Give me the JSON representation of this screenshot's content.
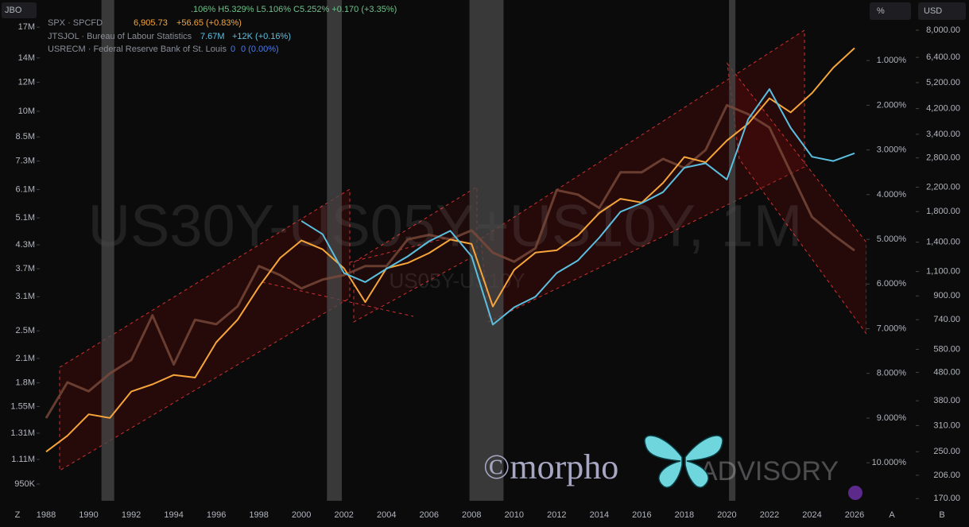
{
  "toolbar": {
    "left_tag": "JBO",
    "pct_tag": "%",
    "usd_tag": "USD",
    "bottom_left": "Z",
    "bottom_a": "A",
    "bottom_b": "B"
  },
  "chart_data": {
    "type": "line",
    "ohlc_line": ".106%  H5.329%  L5.106%  C5.252%  +0.170 (+3.35%)",
    "watermark": "US30Y-US05Y+US10Y, 1M",
    "watermark_sub": "US05Y-US10Y",
    "logo_text": "©morpho",
    "logo_tail": "ADVISORY",
    "x": [
      1988,
      1989,
      1990,
      1991,
      1992,
      1993,
      1994,
      1995,
      1996,
      1997,
      1998,
      1999,
      2000,
      2001,
      2002,
      2003,
      2004,
      2005,
      2006,
      2007,
      2008,
      2009,
      2010,
      2011,
      2012,
      2013,
      2014,
      2015,
      2016,
      2017,
      2018,
      2019,
      2020,
      2021,
      2022,
      2023,
      2024,
      2025,
      2026
    ],
    "xlim": [
      1987.7,
      2026.56
    ],
    "xticks": [
      1988,
      1990,
      1992,
      1994,
      1996,
      1998,
      2000,
      2002,
      2004,
      2006,
      2008,
      2010,
      2012,
      2014,
      2016,
      2018,
      2020,
      2022,
      2024,
      2026
    ],
    "ylim": [
      855000,
      17800000
    ],
    "log_y": true,
    "yticks": [
      {
        "value": 17000000,
        "label": "17M"
      },
      {
        "value": 14000000,
        "label": "14M"
      },
      {
        "value": 12000000,
        "label": "12M"
      },
      {
        "value": 10000000,
        "label": "10M"
      },
      {
        "value": 8500000,
        "label": "8.5M"
      },
      {
        "value": 7300000,
        "label": "7.3M"
      },
      {
        "value": 6100000,
        "label": "6.1M"
      },
      {
        "value": 5100000,
        "label": "5.1M"
      },
      {
        "value": 4300000,
        "label": "4.3M"
      },
      {
        "value": 3700000,
        "label": "3.7M"
      },
      {
        "value": 3100000,
        "label": "3.1M"
      },
      {
        "value": 2500000,
        "label": "2.5M"
      },
      {
        "value": 2100000,
        "label": "2.1M"
      },
      {
        "value": 1800000,
        "label": "1.8M"
      },
      {
        "value": 1550000,
        "label": "1.55M"
      },
      {
        "value": 1310000,
        "label": "1.31M"
      },
      {
        "value": 1110000,
        "label": "1.11M"
      },
      {
        "value": 950000,
        "label": "950K"
      }
    ],
    "y3lim": [
      0.09,
      10.85
    ],
    "y3_inverted": true,
    "y3ticks": [
      {
        "value": 1,
        "label": "1.000%"
      },
      {
        "value": 2,
        "label": "2.000%"
      },
      {
        "value": 3,
        "label": "3.000%"
      },
      {
        "value": 4,
        "label": "4.000%"
      },
      {
        "value": 5,
        "label": "5.000%"
      },
      {
        "value": 6,
        "label": "6.000%"
      },
      {
        "value": 7,
        "label": "7.000%"
      },
      {
        "value": 8,
        "label": "8.000%"
      },
      {
        "value": 9,
        "label": "9.000%"
      },
      {
        "value": 10,
        "label": "10.000%"
      }
    ],
    "y2lim": [
      167,
      8710
    ],
    "log_y2": true,
    "y2ticks": [
      {
        "value": 8000,
        "label": "8,000.00"
      },
      {
        "value": 6400,
        "label": "6,400.00"
      },
      {
        "value": 5200,
        "label": "5,200.00"
      },
      {
        "value": 4200,
        "label": "4,200.00"
      },
      {
        "value": 3400,
        "label": "3,400.00"
      },
      {
        "value": 2800,
        "label": "2,800.00"
      },
      {
        "value": 2200,
        "label": "2,200.00"
      },
      {
        "value": 1800,
        "label": "1,800.00"
      },
      {
        "value": 1400,
        "label": "1,400.00"
      },
      {
        "value": 1100,
        "label": "1,100.00"
      },
      {
        "value": 900,
        "label": "900.00"
      },
      {
        "value": 740,
        "label": "740.00"
      },
      {
        "value": 580,
        "label": "580.00"
      },
      {
        "value": 480,
        "label": "480.00"
      },
      {
        "value": 380,
        "label": "380.00"
      },
      {
        "value": 310,
        "label": "310.00"
      },
      {
        "value": 250,
        "label": "250.00"
      },
      {
        "value": 206,
        "label": "206.00"
      },
      {
        "value": 170,
        "label": "170.00"
      }
    ],
    "series": [
      {
        "name": "US30Y-US05Y+US10Y",
        "color": "#7a4a3a",
        "axis": "y3",
        "values": [
          9.0,
          8.2,
          8.4,
          8.0,
          7.7,
          6.7,
          7.8,
          6.8,
          6.9,
          6.5,
          5.6,
          5.8,
          6.1,
          5.9,
          5.8,
          5.6,
          5.6,
          5.0,
          4.9,
          5.0,
          4.8,
          5.3,
          5.5,
          5.2,
          3.9,
          4.0,
          4.3,
          3.5,
          3.5,
          3.2,
          3.4,
          3.0,
          2.0,
          2.2,
          2.5,
          3.5,
          4.5,
          4.9,
          5.252
        ]
      },
      {
        "name": "SPX · SPCFD",
        "color": "#f5a53a",
        "axis": "y2",
        "last_label": "6,905.73",
        "change_label": "+56.65 (+0.83%)",
        "values": [
          250,
          285,
          340,
          330,
          410,
          435,
          470,
          460,
          615,
          740,
          970,
          1230,
          1420,
          1320,
          1130,
          855,
          1130,
          1180,
          1280,
          1430,
          1380,
          825,
          1115,
          1285,
          1310,
          1480,
          1780,
          2000,
          1940,
          2280,
          2820,
          2700,
          3230,
          3710,
          4570,
          4070,
          4770,
          5880,
          6905.73
        ]
      },
      {
        "name": "JTSJOL · Bureau of Labour Statistics",
        "color": "#5bbfe0",
        "axis": "y",
        "last_label": "7.67M",
        "change_label": "+12K (+0.16%)",
        "values": [
          null,
          null,
          null,
          null,
          null,
          null,
          null,
          null,
          null,
          null,
          null,
          null,
          5000000,
          4600000,
          3600000,
          3400000,
          3700000,
          4000000,
          4400000,
          4700000,
          4000000,
          2600000,
          2900000,
          3100000,
          3600000,
          3900000,
          4500000,
          5300000,
          5600000,
          6000000,
          7000000,
          7200000,
          6500000,
          9500000,
          11500000,
          9000000,
          7500000,
          7300000,
          7670000
        ]
      }
    ],
    "recessions": {
      "name": "USRECM · Federal Reserve Bank of St. Louis",
      "color": "#4a4a4a",
      "last_label": "0",
      "change_label": "0 (0.00%)",
      "periods": [
        [
          1990.6,
          1991.2
        ],
        [
          2001.2,
          2001.9
        ],
        [
          2007.9,
          2009.5
        ],
        [
          2020.1,
          2020.4
        ]
      ]
    }
  }
}
